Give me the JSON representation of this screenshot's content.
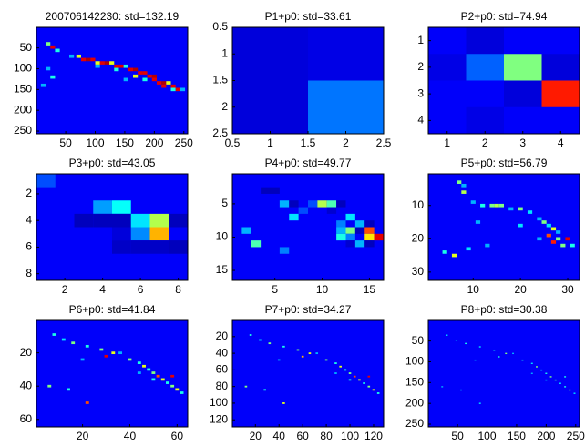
{
  "chart_data": [
    {
      "type": "heatmap",
      "title": "200706142230: std=132.19",
      "xlim": [
        0.5,
        256.5
      ],
      "ylim": [
        0.5,
        256.5
      ],
      "xticks": [
        50,
        100,
        150,
        200,
        250
      ],
      "yticks": [
        50,
        100,
        150,
        200,
        250
      ],
      "background": 0.12,
      "cell": 8,
      "cells": [
        [
          20,
          40,
          0.5
        ],
        [
          28,
          48,
          0.9
        ],
        [
          36,
          56,
          0.4
        ],
        [
          60,
          70,
          0.3
        ],
        [
          72,
          70,
          0.6
        ],
        [
          80,
          78,
          0.9
        ],
        [
          88,
          78,
          0.95
        ],
        [
          96,
          78,
          0.9
        ],
        [
          104,
          86,
          0.6
        ],
        [
          112,
          86,
          0.9
        ],
        [
          120,
          86,
          0.95
        ],
        [
          128,
          86,
          0.6
        ],
        [
          136,
          94,
          0.9
        ],
        [
          144,
          94,
          0.9
        ],
        [
          152,
          94,
          0.4
        ],
        [
          136,
          102,
          0.4
        ],
        [
          160,
          102,
          0.9
        ],
        [
          168,
          102,
          0.95
        ],
        [
          176,
          110,
          0.9
        ],
        [
          184,
          110,
          0.9
        ],
        [
          168,
          118,
          0.6
        ],
        [
          192,
          118,
          0.9
        ],
        [
          200,
          118,
          0.95
        ],
        [
          184,
          126,
          0.4
        ],
        [
          200,
          126,
          0.9
        ],
        [
          208,
          134,
          0.9
        ],
        [
          216,
          134,
          0.95
        ],
        [
          224,
          134,
          0.6
        ],
        [
          216,
          142,
          0.9
        ],
        [
          232,
          142,
          0.9
        ],
        [
          232,
          150,
          0.4
        ],
        [
          240,
          150,
          0.9
        ],
        [
          248,
          150,
          0.3
        ],
        [
          152,
          126,
          0.3
        ],
        [
          104,
          94,
          0.3
        ],
        [
          20,
          100,
          0.3
        ],
        [
          28,
          120,
          0.4
        ],
        [
          12,
          140,
          0.3
        ]
      ]
    },
    {
      "type": "heatmap",
      "title": "P1+p0: std=33.61",
      "xlim": [
        0.5,
        2.5
      ],
      "ylim": [
        0.5,
        2.5
      ],
      "xticks": [
        0.5,
        1,
        1.5,
        2,
        2.5
      ],
      "yticks": [
        0.5,
        1,
        1.5,
        2,
        2.5
      ],
      "background": 0.1,
      "cell": 1,
      "cells": [
        [
          1,
          1,
          0.09
        ],
        [
          1,
          2,
          0.09
        ],
        [
          2,
          2,
          0.24
        ]
      ]
    },
    {
      "type": "heatmap",
      "title": "P2+p0: std=74.94",
      "xlim": [
        0.5,
        4.5
      ],
      "ylim": [
        0.5,
        4.5
      ],
      "xticks": [
        1,
        2,
        3,
        4
      ],
      "yticks": [
        1,
        2,
        3,
        4
      ],
      "background": 0.12,
      "cell": 1,
      "cells": [
        [
          2,
          1,
          0.09
        ],
        [
          1,
          2,
          0.1
        ],
        [
          2,
          2,
          0.22
        ],
        [
          3,
          2,
          0.5
        ],
        [
          4,
          2,
          0.09
        ],
        [
          3,
          3,
          0.09
        ],
        [
          4,
          3,
          0.85
        ],
        [
          2,
          4,
          0.1
        ]
      ]
    },
    {
      "type": "heatmap",
      "title": "P3+p0: std=43.05",
      "xlim": [
        0.5,
        8.5
      ],
      "ylim": [
        0.5,
        8.5
      ],
      "xticks": [
        2,
        4,
        6,
        8
      ],
      "yticks": [
        2,
        4,
        6,
        8
      ],
      "background": 0.12,
      "cell": 1,
      "cells": [
        [
          1,
          1,
          0.2
        ],
        [
          4,
          3,
          0.28
        ],
        [
          5,
          3,
          0.38
        ],
        [
          3,
          4,
          0.06
        ],
        [
          4,
          4,
          0.06
        ],
        [
          5,
          4,
          0.06
        ],
        [
          6,
          4,
          0.35
        ],
        [
          7,
          4,
          0.55
        ],
        [
          8,
          4,
          0.06
        ],
        [
          5,
          5,
          0.09
        ],
        [
          6,
          5,
          0.26
        ],
        [
          7,
          5,
          0.7
        ],
        [
          5,
          6,
          0.07
        ],
        [
          6,
          6,
          0.07
        ],
        [
          7,
          6,
          0.07
        ],
        [
          8,
          6,
          0.06
        ]
      ]
    },
    {
      "type": "heatmap",
      "title": "P4+p0: std=49.77",
      "xlim": [
        0.5,
        16.5
      ],
      "ylim": [
        0.5,
        16.5
      ],
      "xticks": [
        5,
        10,
        15
      ],
      "yticks": [
        5,
        10,
        15
      ],
      "background": 0.12,
      "cell": 1,
      "cells": [
        [
          4,
          3,
          0.06
        ],
        [
          5,
          3,
          0.06
        ],
        [
          6,
          5,
          0.3
        ],
        [
          7,
          5,
          0.06
        ],
        [
          9,
          5,
          0.2
        ],
        [
          10,
          5,
          0.55
        ],
        [
          11,
          5,
          0.45
        ],
        [
          12,
          5,
          0.06
        ],
        [
          8,
          6,
          0.2
        ],
        [
          11,
          6,
          0.08
        ],
        [
          7,
          7,
          0.35
        ],
        [
          13,
          7,
          0.35
        ],
        [
          12,
          8,
          0.25
        ],
        [
          14,
          8,
          0.3
        ],
        [
          15,
          8,
          0.06
        ],
        [
          12,
          9,
          0.3
        ],
        [
          13,
          9,
          0.5
        ],
        [
          14,
          9,
          0.06
        ],
        [
          15,
          9,
          0.8
        ],
        [
          12,
          10,
          0.4
        ],
        [
          13,
          10,
          0.25
        ],
        [
          15,
          10,
          0.65
        ],
        [
          16,
          10,
          0.9
        ],
        [
          2,
          9,
          0.3
        ],
        [
          3,
          11,
          0.45
        ],
        [
          6,
          12,
          0.25
        ],
        [
          13,
          11,
          0.08
        ],
        [
          14,
          11,
          0.3
        ],
        [
          15,
          11,
          0.06
        ]
      ]
    },
    {
      "type": "heatmap",
      "title": "P5+p0: std=56.79",
      "xlim": [
        0.5,
        32.5
      ],
      "ylim": [
        0.5,
        32.5
      ],
      "xticks": [
        10,
        20,
        30
      ],
      "yticks": [
        10,
        20,
        30
      ],
      "background": 0.12,
      "cell": 1,
      "cells": [
        [
          7,
          3,
          0.5
        ],
        [
          8,
          4,
          0.3
        ],
        [
          8,
          6,
          0.55
        ],
        [
          10,
          9,
          0.3
        ],
        [
          12,
          10,
          0.4
        ],
        [
          14,
          10,
          0.5
        ],
        [
          15,
          10,
          0.55
        ],
        [
          16,
          10,
          0.5
        ],
        [
          18,
          11,
          0.3
        ],
        [
          20,
          11,
          0.5
        ],
        [
          22,
          12,
          0.35
        ],
        [
          24,
          14,
          0.3
        ],
        [
          25,
          15,
          0.5
        ],
        [
          26,
          16,
          0.35
        ],
        [
          27,
          17,
          0.6
        ],
        [
          28,
          18,
          0.3
        ],
        [
          26,
          19,
          0.8
        ],
        [
          28,
          20,
          0.5
        ],
        [
          30,
          20,
          0.9
        ],
        [
          27,
          21,
          0.85
        ],
        [
          29,
          22,
          0.5
        ],
        [
          31,
          22,
          0.4
        ],
        [
          24,
          20,
          0.3
        ],
        [
          20,
          16,
          0.35
        ],
        [
          4,
          24,
          0.4
        ],
        [
          6,
          25,
          0.6
        ],
        [
          9,
          23,
          0.35
        ],
        [
          13,
          22,
          0.3
        ],
        [
          11,
          15,
          0.3
        ]
      ]
    },
    {
      "type": "heatmap",
      "title": "P6+p0: std=41.84",
      "xlim": [
        0.5,
        64.5
      ],
      "ylim": [
        0.5,
        64.5
      ],
      "xticks": [
        20,
        40,
        60
      ],
      "yticks": [
        20,
        40,
        60
      ],
      "background": 0.12,
      "cell": 1.5,
      "cells": [
        [
          8,
          9,
          0.4
        ],
        [
          12,
          12,
          0.35
        ],
        [
          16,
          14,
          0.5
        ],
        [
          22,
          16,
          0.4
        ],
        [
          28,
          18,
          0.5
        ],
        [
          33,
          20,
          0.6
        ],
        [
          36,
          20,
          0.3
        ],
        [
          30,
          22,
          0.9
        ],
        [
          40,
          24,
          0.5
        ],
        [
          44,
          26,
          0.4
        ],
        [
          46,
          28,
          0.6
        ],
        [
          48,
          30,
          0.4
        ],
        [
          50,
          32,
          0.5
        ],
        [
          52,
          34,
          0.8
        ],
        [
          54,
          36,
          0.6
        ],
        [
          56,
          38,
          0.4
        ],
        [
          58,
          40,
          0.5
        ],
        [
          60,
          42,
          0.6
        ],
        [
          62,
          44,
          0.4
        ],
        [
          44,
          32,
          0.3
        ],
        [
          50,
          36,
          0.4
        ],
        [
          6,
          40,
          0.5
        ],
        [
          14,
          42,
          0.4
        ],
        [
          22,
          50,
          0.8
        ],
        [
          20,
          24,
          0.3
        ],
        [
          58,
          34,
          0.9
        ]
      ]
    },
    {
      "type": "heatmap",
      "title": "P7+p0: std=34.27",
      "xlim": [
        0.5,
        128.5
      ],
      "ylim": [
        0.5,
        128.5
      ],
      "xticks": [
        20,
        40,
        60,
        80,
        100,
        120
      ],
      "yticks": [
        20,
        40,
        60,
        80,
        100,
        120
      ],
      "background": 0.12,
      "cell": 2,
      "cells": [
        [
          16,
          18,
          0.4
        ],
        [
          24,
          24,
          0.35
        ],
        [
          32,
          28,
          0.5
        ],
        [
          44,
          32,
          0.4
        ],
        [
          56,
          36,
          0.5
        ],
        [
          66,
          40,
          0.6
        ],
        [
          72,
          40,
          0.3
        ],
        [
          60,
          44,
          0.7
        ],
        [
          80,
          48,
          0.5
        ],
        [
          88,
          52,
          0.4
        ],
        [
          92,
          56,
          0.6
        ],
        [
          96,
          60,
          0.4
        ],
        [
          100,
          64,
          0.5
        ],
        [
          104,
          68,
          0.8
        ],
        [
          108,
          72,
          0.6
        ],
        [
          112,
          76,
          0.4
        ],
        [
          116,
          80,
          0.5
        ],
        [
          120,
          84,
          0.6
        ],
        [
          124,
          88,
          0.4
        ],
        [
          88,
          64,
          0.3
        ],
        [
          100,
          72,
          0.4
        ],
        [
          12,
          80,
          0.5
        ],
        [
          28,
          84,
          0.4
        ],
        [
          44,
          100,
          0.6
        ],
        [
          40,
          48,
          0.3
        ],
        [
          116,
          68,
          0.9
        ]
      ]
    },
    {
      "type": "heatmap",
      "title": "P8+p0: std=30.38",
      "xlim": [
        0.5,
        256.5
      ],
      "ylim": [
        0.5,
        256.5
      ],
      "xticks": [
        50,
        100,
        150,
        200,
        250
      ],
      "yticks": [
        50,
        100,
        150,
        200,
        250
      ],
      "background": 0.12,
      "cell": 3,
      "cells": [
        [
          32,
          36,
          0.35
        ],
        [
          48,
          48,
          0.3
        ],
        [
          64,
          56,
          0.4
        ],
        [
          88,
          64,
          0.35
        ],
        [
          112,
          72,
          0.4
        ],
        [
          132,
          80,
          0.5
        ],
        [
          144,
          80,
          0.3
        ],
        [
          120,
          88,
          0.4
        ],
        [
          160,
          96,
          0.4
        ],
        [
          176,
          104,
          0.35
        ],
        [
          184,
          112,
          0.5
        ],
        [
          192,
          120,
          0.35
        ],
        [
          200,
          128,
          0.4
        ],
        [
          208,
          136,
          0.5
        ],
        [
          216,
          144,
          0.45
        ],
        [
          224,
          152,
          0.35
        ],
        [
          232,
          160,
          0.4
        ],
        [
          240,
          168,
          0.5
        ],
        [
          248,
          176,
          0.35
        ],
        [
          176,
          128,
          0.3
        ],
        [
          200,
          144,
          0.35
        ],
        [
          24,
          160,
          0.3
        ],
        [
          56,
          168,
          0.3
        ],
        [
          88,
          200,
          0.35
        ],
        [
          80,
          96,
          0.3
        ],
        [
          232,
          136,
          0.4
        ]
      ]
    }
  ]
}
